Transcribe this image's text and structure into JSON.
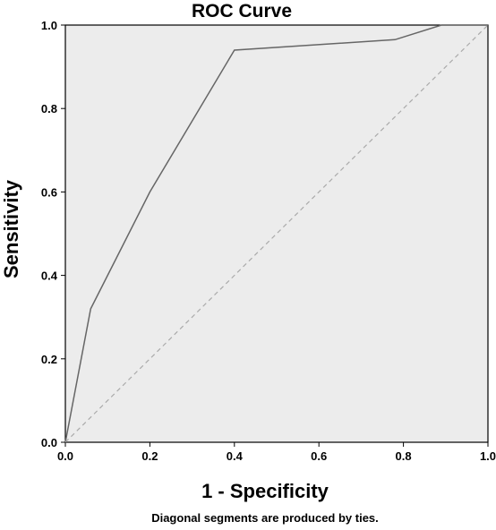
{
  "chart_data": {
    "type": "line",
    "title": "ROC Curve",
    "xlabel": "1 - Specificity",
    "ylabel": "Sensitivity",
    "footnote": "Diagonal segments are produced by ties.",
    "xlim": [
      0,
      1
    ],
    "ylim": [
      0,
      1
    ],
    "x_ticks": [
      "0.0",
      "0.2",
      "0.4",
      "0.6",
      "0.8",
      "1.0"
    ],
    "y_ticks": [
      "0.0",
      "0.2",
      "0.4",
      "0.6",
      "0.8",
      "1.0"
    ],
    "grid": false,
    "series": [
      {
        "x": [
          0.0,
          0.06,
          0.2,
          0.4,
          0.78,
          0.89,
          1.0
        ],
        "y": [
          0.0,
          0.32,
          0.6,
          0.94,
          0.965,
          1.0,
          1.0
        ],
        "color": "#666666",
        "style": "solid"
      },
      {
        "x": [
          0,
          1
        ],
        "y": [
          0,
          1
        ],
        "color": "#aaaaaa",
        "style": "dashed"
      }
    ],
    "plot_background": "#ececec"
  }
}
